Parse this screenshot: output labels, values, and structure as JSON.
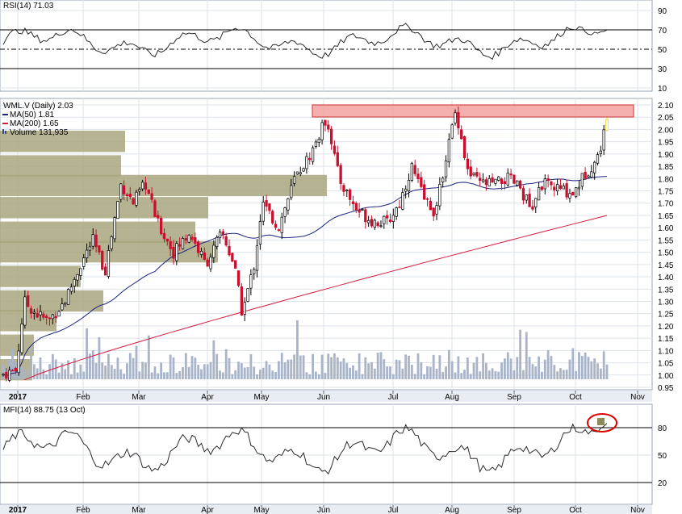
{
  "colors": {
    "up": "#000000",
    "down": "#c8102e",
    "last": "#e8d000",
    "ma50": "#1a237e",
    "ma200": "#d81b3c",
    "volume": "#a9b4c8",
    "volume_profile": "#a8a67e",
    "resistance_fill": "#f3a0a0",
    "resistance_stroke": "#d03030",
    "grid": "#dde3ea",
    "panel_bg": "#ffffff",
    "axis_strip": "#e8edf3",
    "rsi_line": "#2a2a2a",
    "highlight_circle": "#e00000",
    "mfi_marker": "#8a8a5a"
  },
  "months": [
    "2017",
    "Feb",
    "Mar",
    "Apr",
    "May",
    "Jun",
    "Jul",
    "Aug",
    "Sep",
    "Oct",
    "Nov"
  ],
  "rsi": {
    "label": "RSI(14)",
    "value": "71.03",
    "ticks": [
      "90",
      "70",
      "50",
      "30",
      "10"
    ]
  },
  "price": {
    "title": "WML.V (Daily)",
    "last": "2.03",
    "ma50_label": "MA(50)",
    "ma50_value": "1.81",
    "ma200_label": "MA(200)",
    "ma200_value": "1.65",
    "volume_label": "Volume",
    "volume_value": "131,935",
    "ticks": [
      "2.10",
      "2.05",
      "2.00",
      "1.95",
      "1.90",
      "1.85",
      "1.80",
      "1.75",
      "1.70",
      "1.65",
      "1.60",
      "1.55",
      "1.50",
      "1.45",
      "1.40",
      "1.35",
      "1.30",
      "1.25",
      "1.20",
      "1.15",
      "1.10",
      "1.05",
      "1.00",
      "0.95"
    ]
  },
  "mfi": {
    "label": "MFI(14)",
    "value": "88.75",
    "date": "(13 Oct)",
    "ticks": [
      "80",
      "50",
      "20"
    ]
  },
  "chart_data": {
    "type": "candlestick",
    "x_axis": "2017 daily, Jan through mid-Oct",
    "price_ylim": [
      0.95,
      2.1
    ],
    "resistance_band": [
      2.05,
      2.1
    ],
    "key_points": [
      {
        "month": "Jan",
        "close": 1.0
      },
      {
        "month": "Feb",
        "close": 1.45
      },
      {
        "month": "Mar",
        "close": 1.6
      },
      {
        "month": "Apr",
        "close": 1.25
      },
      {
        "month": "May",
        "close": 1.7
      },
      {
        "month": "Jun",
        "close": 2.05
      },
      {
        "month": "Jul",
        "close": 1.65
      },
      {
        "month": "Aug",
        "close": 2.08
      },
      {
        "month": "Sep",
        "close": 1.7
      },
      {
        "month": "Oct",
        "close": 2.03
      }
    ],
    "ma50_last": 1.81,
    "ma200_last": 1.65,
    "rsi_last": 71.03,
    "mfi_last": 88.75
  }
}
